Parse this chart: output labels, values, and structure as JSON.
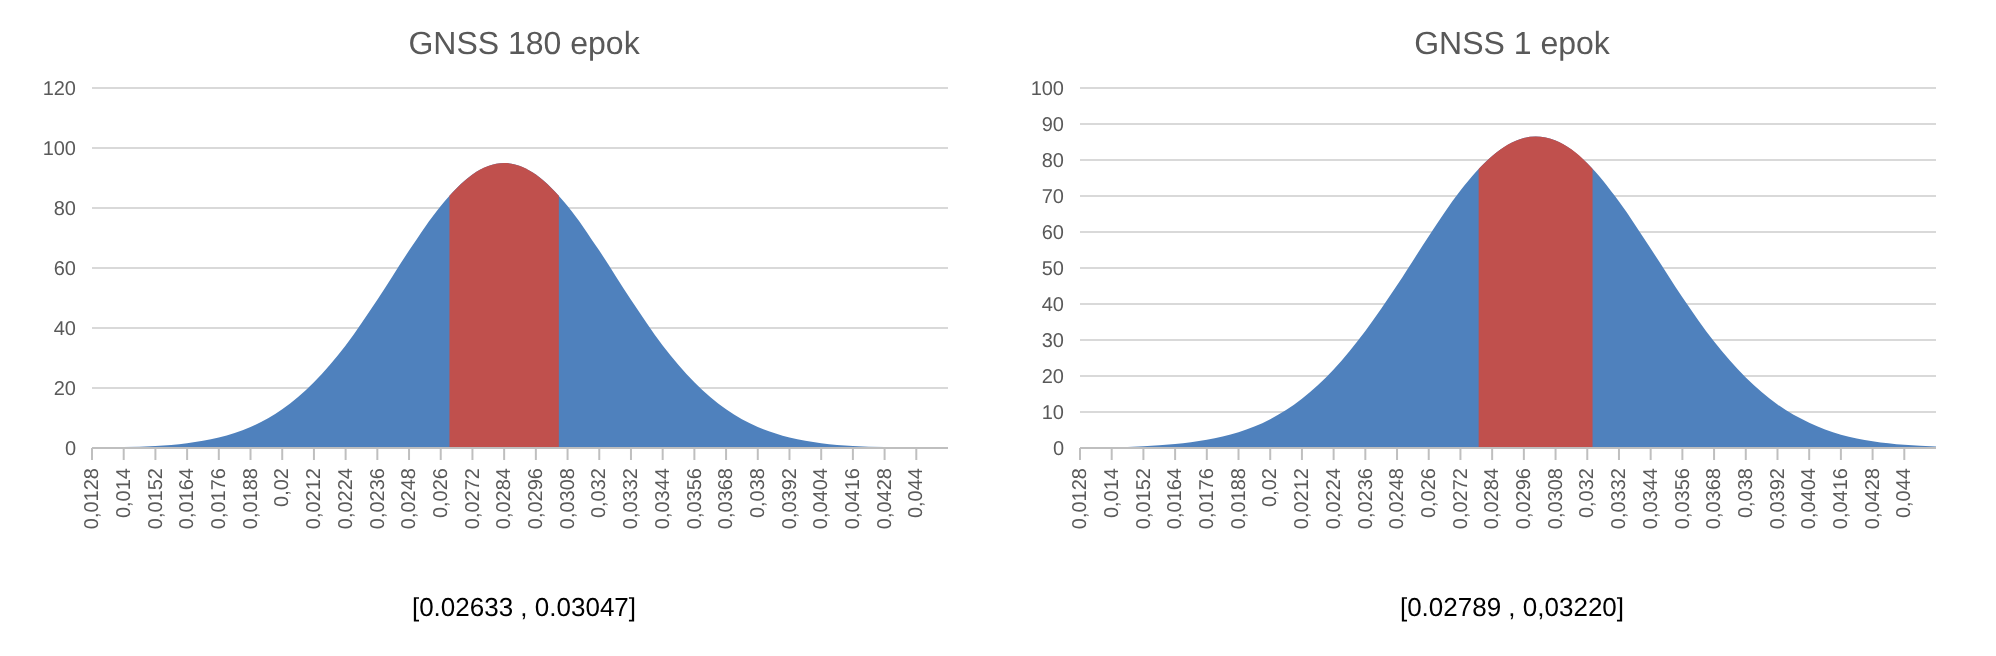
{
  "chart_data": [
    {
      "type": "area",
      "title": "GNSS 180 epok",
      "annotations": [
        "[0.02633 , 0.03047]"
      ],
      "xlim": [
        0.0128,
        0.0452
      ],
      "xticks": [
        {
          "value": 0.0128,
          "label": "0,0128"
        },
        {
          "value": 0.014,
          "label": "0,014"
        },
        {
          "value": 0.0152,
          "label": "0,0152"
        },
        {
          "value": 0.0164,
          "label": "0,0164"
        },
        {
          "value": 0.0176,
          "label": "0,0176"
        },
        {
          "value": 0.0188,
          "label": "0,0188"
        },
        {
          "value": 0.02,
          "label": "0,02"
        },
        {
          "value": 0.0212,
          "label": "0,0212"
        },
        {
          "value": 0.0224,
          "label": "0,0224"
        },
        {
          "value": 0.0236,
          "label": "0,0236"
        },
        {
          "value": 0.0248,
          "label": "0,0248"
        },
        {
          "value": 0.026,
          "label": "0,026"
        },
        {
          "value": 0.0272,
          "label": "0,0272"
        },
        {
          "value": 0.0284,
          "label": "0,0284"
        },
        {
          "value": 0.0296,
          "label": "0,0296"
        },
        {
          "value": 0.0308,
          "label": "0,0308"
        },
        {
          "value": 0.032,
          "label": "0,032"
        },
        {
          "value": 0.0332,
          "label": "0,0332"
        },
        {
          "value": 0.0344,
          "label": "0,0344"
        },
        {
          "value": 0.0356,
          "label": "0,0356"
        },
        {
          "value": 0.0368,
          "label": "0,0368"
        },
        {
          "value": 0.038,
          "label": "0,038"
        },
        {
          "value": 0.0392,
          "label": "0,0392"
        },
        {
          "value": 0.0404,
          "label": "0,0404"
        },
        {
          "value": 0.0416,
          "label": "0,0416"
        },
        {
          "value": 0.0428,
          "label": "0,0428"
        },
        {
          "value": 0.044,
          "label": "0,044"
        }
      ],
      "ylim": [
        0,
        120
      ],
      "yticks": [
        0,
        20,
        40,
        60,
        80,
        100,
        120
      ],
      "grid": "y",
      "series": [
        {
          "color": "#4f81bd",
          "x": [
            0.0128,
            0.014,
            0.0152,
            0.0164,
            0.0176,
            0.0188,
            0.02,
            0.0212,
            0.0224,
            0.0236,
            0.0248,
            0.026,
            0.0272,
            0.0284,
            0.0296,
            0.0308,
            0.032,
            0.0332,
            0.0344,
            0.0356,
            0.0368,
            0.038,
            0.0392,
            0.0404,
            0.0416,
            0.0428,
            0.044,
            0.0452
          ],
          "values": [
            0.1,
            0.3,
            0.7,
            1.6,
            3.5,
            7,
            12.9,
            21.9,
            34.2,
            49.4,
            65.8,
            80.7,
            91.2,
            95,
            91.2,
            80.7,
            65.8,
            49.4,
            34.2,
            21.9,
            12.9,
            7,
            3.5,
            1.6,
            0.7,
            0.3,
            0.1,
            0
          ]
        },
        {
          "color": "#c0504d",
          "x": [
            0.02633,
            0.0272,
            0.0284,
            0.0296,
            0.03047
          ],
          "values": [
            84.1,
            91.2,
            95,
            91.2,
            84.1
          ]
        }
      ]
    },
    {
      "type": "area",
      "title": "GNSS 1 epok",
      "annotations": [
        "[0.02789 , 0,03220]"
      ],
      "xlim": [
        0.0128,
        0.0452
      ],
      "xticks": [
        {
          "value": 0.0128,
          "label": "0,0128"
        },
        {
          "value": 0.014,
          "label": "0,014"
        },
        {
          "value": 0.0152,
          "label": "0,0152"
        },
        {
          "value": 0.0164,
          "label": "0,0164"
        },
        {
          "value": 0.0176,
          "label": "0,0176"
        },
        {
          "value": 0.0188,
          "label": "0,0188"
        },
        {
          "value": 0.02,
          "label": "0,02"
        },
        {
          "value": 0.0212,
          "label": "0,0212"
        },
        {
          "value": 0.0224,
          "label": "0,0224"
        },
        {
          "value": 0.0236,
          "label": "0,0236"
        },
        {
          "value": 0.0248,
          "label": "0,0248"
        },
        {
          "value": 0.026,
          "label": "0,026"
        },
        {
          "value": 0.0272,
          "label": "0,0272"
        },
        {
          "value": 0.0284,
          "label": "0,0284"
        },
        {
          "value": 0.0296,
          "label": "0,0296"
        },
        {
          "value": 0.0308,
          "label": "0,0308"
        },
        {
          "value": 0.032,
          "label": "0,032"
        },
        {
          "value": 0.0332,
          "label": "0,0332"
        },
        {
          "value": 0.0344,
          "label": "0,0344"
        },
        {
          "value": 0.0356,
          "label": "0,0356"
        },
        {
          "value": 0.0368,
          "label": "0,0368"
        },
        {
          "value": 0.038,
          "label": "0,038"
        },
        {
          "value": 0.0392,
          "label": "0,0392"
        },
        {
          "value": 0.0404,
          "label": "0,0404"
        },
        {
          "value": 0.0416,
          "label": "0,0416"
        },
        {
          "value": 0.0428,
          "label": "0,0428"
        },
        {
          "value": 0.044,
          "label": "0,044"
        }
      ],
      "ylim": [
        0,
        100
      ],
      "yticks": [
        0,
        10,
        20,
        30,
        40,
        50,
        60,
        70,
        80,
        90,
        100
      ],
      "grid": "y",
      "series": [
        {
          "color": "#4f81bd",
          "x": [
            0.0128,
            0.014,
            0.0152,
            0.0164,
            0.0176,
            0.0188,
            0.02,
            0.0212,
            0.0224,
            0.0236,
            0.0248,
            0.026,
            0.0272,
            0.0284,
            0.0296,
            0.03005,
            0.0308,
            0.032,
            0.0332,
            0.0344,
            0.0356,
            0.0368,
            0.038,
            0.0392,
            0.0404,
            0.0416,
            0.0428,
            0.044,
            0.0452
          ],
          "values": [
            0.1,
            0.2,
            0.5,
            1.1,
            2.3,
            4.4,
            8,
            13.7,
            21.8,
            32.5,
            45.2,
            58.8,
            71.5,
            81.1,
            86.1,
            86.5,
            85.4,
            79.1,
            68.5,
            55.4,
            41.9,
            29.6,
            19.6,
            12.1,
            7,
            3.7,
            1.9,
            0.9,
            0.4
          ]
        },
        {
          "color": "#c0504d",
          "x": [
            0.02789,
            0.0284,
            0.0296,
            0.03005,
            0.0308,
            0.032,
            0.0322
          ],
          "values": [
            77.5,
            81.1,
            86.1,
            86.5,
            85.4,
            79.1,
            77.5
          ]
        }
      ]
    }
  ]
}
